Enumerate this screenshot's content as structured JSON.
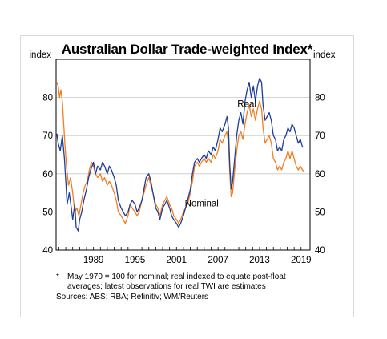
{
  "chart_data": {
    "type": "line",
    "title": "Australian Dollar Trade-weighted Index*",
    "ylabel_left": "index",
    "ylabel_right": "index",
    "ylim": [
      40,
      90
    ],
    "yticks": [
      40,
      50,
      60,
      70,
      80
    ],
    "xlim": [
      1983.6,
      2020.3
    ],
    "xticks": [
      1989,
      1995,
      2001,
      2007,
      2013,
      2019
    ],
    "grid": true,
    "series_labels": [
      {
        "text": "Real",
        "color": "#1f3d99"
      },
      {
        "text": "Nominal",
        "color": "#f27e21"
      }
    ],
    "series": [
      {
        "name": "Real",
        "color": "#1f3d99",
        "points": [
          [
            1983.7,
            70.5
          ],
          [
            1983.9,
            68
          ],
          [
            1984.2,
            66
          ],
          [
            1984.5,
            70
          ],
          [
            1984.8,
            64
          ],
          [
            1985.0,
            58
          ],
          [
            1985.2,
            52
          ],
          [
            1985.5,
            55
          ],
          [
            1985.8,
            51
          ],
          [
            1986.0,
            48
          ],
          [
            1986.3,
            52
          ],
          [
            1986.5,
            46
          ],
          [
            1986.8,
            45
          ],
          [
            1987.0,
            48
          ],
          [
            1987.3,
            50
          ],
          [
            1987.6,
            53
          ],
          [
            1988.0,
            56
          ],
          [
            1988.3,
            59
          ],
          [
            1988.6,
            61
          ],
          [
            1989.0,
            63
          ],
          [
            1989.3,
            60
          ],
          [
            1989.6,
            62
          ],
          [
            1990.0,
            61
          ],
          [
            1990.3,
            63
          ],
          [
            1990.6,
            62
          ],
          [
            1991.0,
            60
          ],
          [
            1991.3,
            62
          ],
          [
            1991.6,
            61
          ],
          [
            1992.0,
            59
          ],
          [
            1992.3,
            57
          ],
          [
            1992.6,
            53
          ],
          [
            1993.0,
            51
          ],
          [
            1993.3,
            50
          ],
          [
            1993.6,
            49
          ],
          [
            1994.0,
            50
          ],
          [
            1994.3,
            52
          ],
          [
            1994.6,
            53
          ],
          [
            1995.0,
            52
          ],
          [
            1995.3,
            50
          ],
          [
            1995.6,
            51
          ],
          [
            1996.0,
            53
          ],
          [
            1996.3,
            56
          ],
          [
            1996.6,
            59
          ],
          [
            1997.0,
            60
          ],
          [
            1997.3,
            58
          ],
          [
            1997.6,
            55
          ],
          [
            1998.0,
            51
          ],
          [
            1998.3,
            50
          ],
          [
            1998.6,
            48
          ],
          [
            1999.0,
            51
          ],
          [
            1999.3,
            52
          ],
          [
            1999.6,
            53
          ],
          [
            2000.0,
            51
          ],
          [
            2000.3,
            49
          ],
          [
            2000.6,
            48
          ],
          [
            2001.0,
            47
          ],
          [
            2001.3,
            46
          ],
          [
            2001.6,
            47
          ],
          [
            2002.0,
            49
          ],
          [
            2002.3,
            51
          ],
          [
            2002.6,
            53
          ],
          [
            2003.0,
            56
          ],
          [
            2003.3,
            60
          ],
          [
            2003.6,
            63
          ],
          [
            2004.0,
            64
          ],
          [
            2004.3,
            63
          ],
          [
            2004.6,
            64
          ],
          [
            2005.0,
            65
          ],
          [
            2005.3,
            64
          ],
          [
            2005.6,
            66
          ],
          [
            2006.0,
            65
          ],
          [
            2006.3,
            67
          ],
          [
            2006.6,
            66
          ],
          [
            2007.0,
            69
          ],
          [
            2007.3,
            72
          ],
          [
            2007.6,
            71
          ],
          [
            2008.0,
            73
          ],
          [
            2008.3,
            75
          ],
          [
            2008.5,
            72
          ],
          [
            2008.7,
            62
          ],
          [
            2008.9,
            56
          ],
          [
            2009.1,
            58
          ],
          [
            2009.4,
            64
          ],
          [
            2009.7,
            70
          ],
          [
            2010.0,
            74
          ],
          [
            2010.3,
            76
          ],
          [
            2010.6,
            73
          ],
          [
            2010.9,
            79
          ],
          [
            2011.2,
            82
          ],
          [
            2011.5,
            84
          ],
          [
            2011.8,
            80
          ],
          [
            2012.1,
            83
          ],
          [
            2012.4,
            79
          ],
          [
            2012.7,
            83
          ],
          [
            2013.0,
            85
          ],
          [
            2013.3,
            84
          ],
          [
            2013.5,
            78
          ],
          [
            2013.8,
            74
          ],
          [
            2014.1,
            75
          ],
          [
            2014.4,
            76
          ],
          [
            2014.7,
            74
          ],
          [
            2015.0,
            70
          ],
          [
            2015.3,
            69
          ],
          [
            2015.6,
            66
          ],
          [
            2015.9,
            67
          ],
          [
            2016.2,
            66
          ],
          [
            2016.5,
            69
          ],
          [
            2016.8,
            70
          ],
          [
            2017.1,
            72
          ],
          [
            2017.4,
            71
          ],
          [
            2017.7,
            73
          ],
          [
            2018.0,
            72
          ],
          [
            2018.3,
            70
          ],
          [
            2018.6,
            68
          ],
          [
            2018.9,
            69
          ],
          [
            2019.2,
            67
          ],
          [
            2019.5,
            67
          ]
        ]
      },
      {
        "name": "Nominal",
        "color": "#f27e21",
        "points": [
          [
            1983.7,
            84
          ],
          [
            1983.9,
            83
          ],
          [
            1984.1,
            80
          ],
          [
            1984.3,
            82
          ],
          [
            1984.5,
            79
          ],
          [
            1984.7,
            73
          ],
          [
            1984.9,
            67
          ],
          [
            1985.1,
            62
          ],
          [
            1985.4,
            57
          ],
          [
            1985.7,
            59
          ],
          [
            1986.0,
            55
          ],
          [
            1986.3,
            50
          ],
          [
            1986.6,
            51
          ],
          [
            1986.9,
            49
          ],
          [
            1987.2,
            52
          ],
          [
            1987.5,
            55
          ],
          [
            1987.8,
            57
          ],
          [
            1988.1,
            58
          ],
          [
            1988.4,
            61
          ],
          [
            1988.7,
            63
          ],
          [
            1989.0,
            62
          ],
          [
            1989.3,
            60
          ],
          [
            1989.6,
            59
          ],
          [
            1990.0,
            60
          ],
          [
            1990.3,
            58
          ],
          [
            1990.6,
            59
          ],
          [
            1991.0,
            57
          ],
          [
            1991.3,
            58
          ],
          [
            1991.6,
            57
          ],
          [
            1992.0,
            55
          ],
          [
            1992.3,
            53
          ],
          [
            1992.6,
            50
          ],
          [
            1993.0,
            49
          ],
          [
            1993.3,
            48
          ],
          [
            1993.6,
            47
          ],
          [
            1994.0,
            49
          ],
          [
            1994.3,
            52
          ],
          [
            1994.6,
            51
          ],
          [
            1995.0,
            50
          ],
          [
            1995.3,
            49
          ],
          [
            1995.6,
            50
          ],
          [
            1996.0,
            53
          ],
          [
            1996.3,
            55
          ],
          [
            1996.6,
            57
          ],
          [
            1997.0,
            59
          ],
          [
            1997.3,
            57
          ],
          [
            1997.6,
            55
          ],
          [
            1998.0,
            52
          ],
          [
            1998.3,
            51
          ],
          [
            1998.6,
            49
          ],
          [
            1999.0,
            52
          ],
          [
            1999.3,
            53
          ],
          [
            1999.6,
            54
          ],
          [
            2000.0,
            52
          ],
          [
            2000.3,
            51
          ],
          [
            2000.6,
            49
          ],
          [
            2001.0,
            48
          ],
          [
            2001.3,
            47
          ],
          [
            2001.6,
            48
          ],
          [
            2002.0,
            50
          ],
          [
            2002.3,
            51
          ],
          [
            2002.6,
            52
          ],
          [
            2003.0,
            55
          ],
          [
            2003.3,
            58
          ],
          [
            2003.6,
            62
          ],
          [
            2004.0,
            63
          ],
          [
            2004.3,
            62
          ],
          [
            2004.6,
            63
          ],
          [
            2005.0,
            64
          ],
          [
            2005.3,
            63
          ],
          [
            2005.6,
            64
          ],
          [
            2006.0,
            63
          ],
          [
            2006.3,
            65
          ],
          [
            2006.6,
            64
          ],
          [
            2007.0,
            66
          ],
          [
            2007.3,
            69
          ],
          [
            2007.6,
            68
          ],
          [
            2008.0,
            70
          ],
          [
            2008.3,
            71
          ],
          [
            2008.5,
            68
          ],
          [
            2008.7,
            60
          ],
          [
            2008.9,
            54
          ],
          [
            2009.1,
            55
          ],
          [
            2009.4,
            61
          ],
          [
            2009.7,
            66
          ],
          [
            2010.0,
            70
          ],
          [
            2010.3,
            71
          ],
          [
            2010.6,
            69
          ],
          [
            2010.9,
            73
          ],
          [
            2011.2,
            76
          ],
          [
            2011.5,
            78
          ],
          [
            2011.8,
            75
          ],
          [
            2012.1,
            77
          ],
          [
            2012.4,
            74
          ],
          [
            2012.7,
            77
          ],
          [
            2013.0,
            79
          ],
          [
            2013.3,
            77
          ],
          [
            2013.5,
            72
          ],
          [
            2013.8,
            68
          ],
          [
            2014.1,
            69
          ],
          [
            2014.4,
            70
          ],
          [
            2014.7,
            68
          ],
          [
            2015.0,
            64
          ],
          [
            2015.3,
            63
          ],
          [
            2015.6,
            61
          ],
          [
            2015.9,
            62
          ],
          [
            2016.2,
            61
          ],
          [
            2016.5,
            63
          ],
          [
            2016.8,
            64
          ],
          [
            2017.1,
            66
          ],
          [
            2017.4,
            64
          ],
          [
            2017.7,
            66
          ],
          [
            2018.0,
            64
          ],
          [
            2018.3,
            62
          ],
          [
            2018.6,
            61
          ],
          [
            2018.9,
            62
          ],
          [
            2019.2,
            61
          ],
          [
            2019.5,
            60.5
          ]
        ]
      }
    ]
  },
  "footnote": {
    "marker": "*",
    "text": "May 1970 = 100 for nominal; real indexed to equate post-float averages; latest observations for real TWI are estimates",
    "sources": "Sources: ABS; RBA; Refinitiv; WM/Reuters"
  }
}
